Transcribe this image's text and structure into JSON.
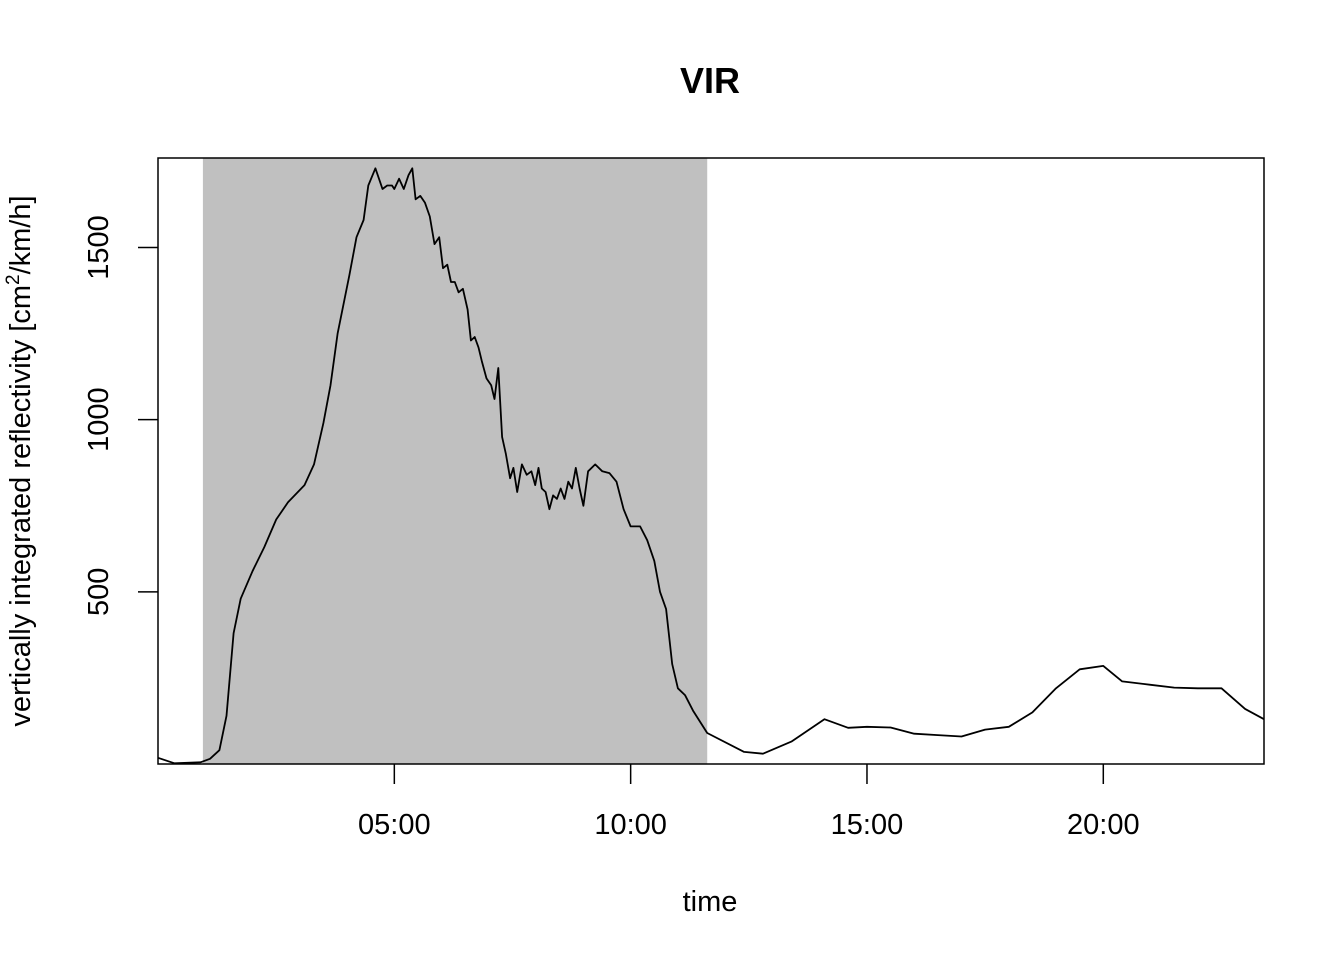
{
  "chart_data": {
    "type": "line",
    "title": "VIR",
    "xlabel": "time",
    "ylabel_main": "vertically integrated reflectivity [cm",
    "ylabel_sup": "2",
    "ylabel_tail": "/km/h]",
    "x_unit": "hours",
    "xlim": [
      0.0,
      23.4
    ],
    "ylim": [
      0,
      1760
    ],
    "x_ticks": [
      {
        "value": 5,
        "label": "05:00"
      },
      {
        "value": 10,
        "label": "10:00"
      },
      {
        "value": 15,
        "label": "15:00"
      },
      {
        "value": 20,
        "label": "20:00"
      }
    ],
    "y_ticks": [
      {
        "value": 500,
        "label": "500"
      },
      {
        "value": 1000,
        "label": "1000"
      },
      {
        "value": 1500,
        "label": "1500"
      }
    ],
    "shaded_interval": {
      "start": 0.95,
      "end": 11.62,
      "color": "#c0c0c0"
    },
    "line_color": "#000000",
    "grid": false,
    "series": [
      {
        "values": [
          [
            0.0,
            18
          ],
          [
            0.35,
            2
          ],
          [
            0.9,
            5
          ],
          [
            1.1,
            15
          ],
          [
            1.3,
            40
          ],
          [
            1.45,
            140
          ],
          [
            1.6,
            380
          ],
          [
            1.75,
            480
          ],
          [
            2.0,
            560
          ],
          [
            2.25,
            630
          ],
          [
            2.5,
            710
          ],
          [
            2.75,
            760
          ],
          [
            3.1,
            810
          ],
          [
            3.3,
            870
          ],
          [
            3.5,
            990
          ],
          [
            3.65,
            1100
          ],
          [
            3.8,
            1250
          ],
          [
            4.05,
            1420
          ],
          [
            4.2,
            1530
          ],
          [
            4.35,
            1580
          ],
          [
            4.45,
            1680
          ],
          [
            4.6,
            1730
          ],
          [
            4.75,
            1670
          ],
          [
            4.85,
            1680
          ],
          [
            4.95,
            1680
          ],
          [
            5.0,
            1670
          ],
          [
            5.1,
            1700
          ],
          [
            5.2,
            1670
          ],
          [
            5.3,
            1710
          ],
          [
            5.38,
            1730
          ],
          [
            5.45,
            1640
          ],
          [
            5.55,
            1650
          ],
          [
            5.65,
            1630
          ],
          [
            5.75,
            1590
          ],
          [
            5.85,
            1510
          ],
          [
            5.95,
            1530
          ],
          [
            6.03,
            1440
          ],
          [
            6.12,
            1450
          ],
          [
            6.2,
            1400
          ],
          [
            6.28,
            1400
          ],
          [
            6.36,
            1370
          ],
          [
            6.45,
            1380
          ],
          [
            6.55,
            1320
          ],
          [
            6.62,
            1230
          ],
          [
            6.7,
            1240
          ],
          [
            6.78,
            1210
          ],
          [
            6.85,
            1170
          ],
          [
            6.95,
            1120
          ],
          [
            7.05,
            1100
          ],
          [
            7.12,
            1060
          ],
          [
            7.2,
            1150
          ],
          [
            7.28,
            950
          ],
          [
            7.36,
            900
          ],
          [
            7.45,
            830
          ],
          [
            7.52,
            860
          ],
          [
            7.6,
            790
          ],
          [
            7.7,
            870
          ],
          [
            7.8,
            840
          ],
          [
            7.9,
            850
          ],
          [
            7.98,
            810
          ],
          [
            8.05,
            860
          ],
          [
            8.12,
            800
          ],
          [
            8.2,
            790
          ],
          [
            8.28,
            740
          ],
          [
            8.36,
            780
          ],
          [
            8.44,
            770
          ],
          [
            8.52,
            800
          ],
          [
            8.6,
            770
          ],
          [
            8.68,
            820
          ],
          [
            8.76,
            800
          ],
          [
            8.84,
            860
          ],
          [
            8.92,
            800
          ],
          [
            9.0,
            750
          ],
          [
            9.1,
            850
          ],
          [
            9.25,
            870
          ],
          [
            9.4,
            850
          ],
          [
            9.55,
            845
          ],
          [
            9.7,
            820
          ],
          [
            9.85,
            740
          ],
          [
            10.0,
            690
          ],
          [
            10.2,
            690
          ],
          [
            10.35,
            650
          ],
          [
            10.5,
            590
          ],
          [
            10.62,
            500
          ],
          [
            10.75,
            450
          ],
          [
            10.88,
            290
          ],
          [
            11.0,
            220
          ],
          [
            11.15,
            200
          ],
          [
            11.32,
            155
          ],
          [
            11.62,
            90
          ],
          [
            12.4,
            35
          ],
          [
            12.8,
            30
          ],
          [
            13.4,
            65
          ],
          [
            14.1,
            130
          ],
          [
            14.6,
            105
          ],
          [
            15.0,
            108
          ],
          [
            15.5,
            106
          ],
          [
            16.0,
            88
          ],
          [
            16.5,
            84
          ],
          [
            17.0,
            80
          ],
          [
            17.5,
            100
          ],
          [
            18.0,
            108
          ],
          [
            18.5,
            150
          ],
          [
            19.0,
            220
          ],
          [
            19.5,
            275
          ],
          [
            20.0,
            285
          ],
          [
            20.4,
            240
          ],
          [
            21.0,
            230
          ],
          [
            21.5,
            222
          ],
          [
            22.0,
            220
          ],
          [
            22.5,
            220
          ],
          [
            23.0,
            160
          ],
          [
            23.4,
            130
          ]
        ]
      }
    ]
  }
}
